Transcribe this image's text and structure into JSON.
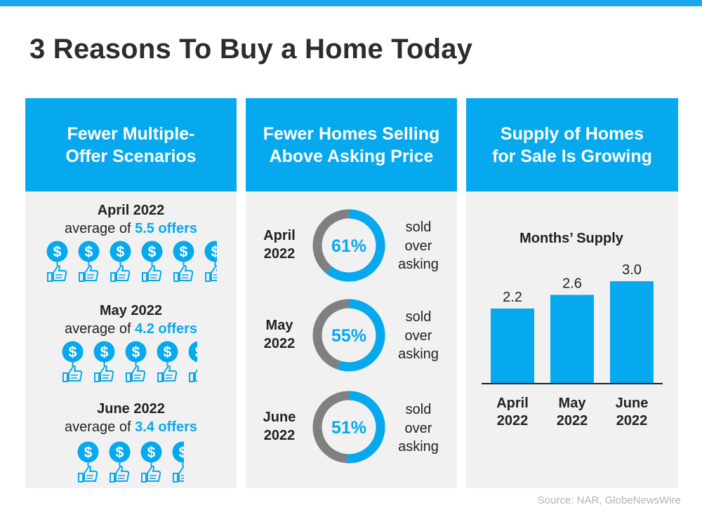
{
  "title": "3 Reasons To Buy a Home Today",
  "source": "Source: NAR, GlobeNewsWire",
  "colors": {
    "accent": "#07a9ee",
    "dark": "#2c2c2c",
    "ring_gray": "#808080",
    "panel_bg": "#f1f1f1"
  },
  "panels": [
    {
      "header": "Fewer Multiple-\nOffer Scenarios"
    },
    {
      "header": "Fewer Homes Selling\nAbove Asking Price"
    },
    {
      "header": "Supply of Homes\nfor Sale Is Growing"
    }
  ],
  "offers": [
    {
      "period": "April 2022",
      "prefix": "average of ",
      "value": "5.5 offers",
      "count": 5.5
    },
    {
      "period": "May 2022",
      "prefix": "average of ",
      "value": "4.2 offers",
      "count": 4.2
    },
    {
      "period": "June 2022",
      "prefix": "average of ",
      "value": "3.4 offers",
      "count": 3.4
    }
  ],
  "offer_icon": "dollar-thumbs-up-icon",
  "above_asking": [
    {
      "period": "April\n2022",
      "label": "61%",
      "percent": 61,
      "caption": "sold\nover\nasking"
    },
    {
      "period": "May\n2022",
      "label": "55%",
      "percent": 55,
      "caption": "sold\nover\nasking"
    },
    {
      "period": "June\n2022",
      "label": "51%",
      "percent": 51,
      "caption": "sold\nover\nasking"
    }
  ],
  "chart_data": {
    "type": "bar",
    "title": "Months’ Supply",
    "categories": [
      "April 2022",
      "May 2022",
      "June 2022"
    ],
    "category_lines": [
      [
        "April",
        "2022"
      ],
      [
        "May",
        "2022"
      ],
      [
        "June",
        "2022"
      ]
    ],
    "values": [
      2.2,
      2.6,
      3.0
    ],
    "value_labels": [
      "2.2",
      "2.6",
      "3.0"
    ],
    "ylim": [
      0,
      3.5
    ],
    "grid": false,
    "bar_color": "#07a9ee"
  }
}
